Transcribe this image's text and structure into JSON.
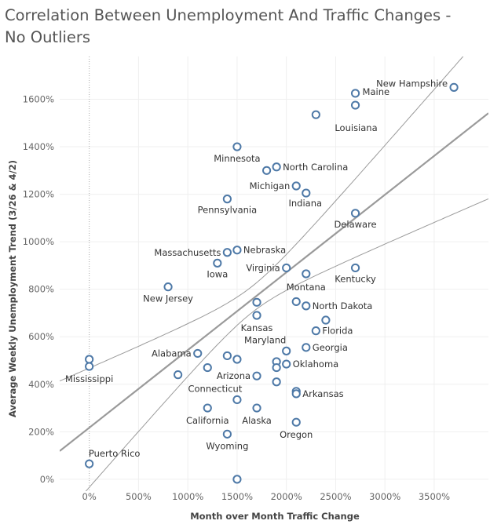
{
  "chart_data": {
    "type": "scatter",
    "title": "Correlation Between Unemployment And Traffic Changes - No Outliers",
    "xlabel": "Month over Month Traffic Change",
    "ylabel": "Average Weekly Unemployment Trend (3/26 & 4/2)",
    "xlim": [
      -300,
      4050
    ],
    "ylim": [
      -50,
      1780
    ],
    "xticks": [
      0,
      500,
      1000,
      1500,
      2000,
      2500,
      3000,
      3500
    ],
    "xtick_labels": [
      "0%",
      "500%",
      "1000%",
      "1500%",
      "2000%",
      "2500%",
      "3000%",
      "3500%"
    ],
    "yticks": [
      0,
      200,
      400,
      600,
      800,
      1000,
      1200,
      1400,
      1600
    ],
    "ytick_labels": [
      "0%",
      "200%",
      "400%",
      "600%",
      "800%",
      "1000%",
      "1200%",
      "1400%",
      "1600%"
    ],
    "reference_line_x": 0,
    "trend_line": {
      "intercept": 217,
      "slope": 0.327
    },
    "confidence_band": {
      "upper_at_zero": 460,
      "lower_at_zero": -30
    },
    "points": [
      {
        "name": "New Hampshire",
        "x": 3700,
        "y": 1650
      },
      {
        "name": "Maine",
        "x": 2700,
        "y": 1625
      },
      {
        "name": "",
        "x": 2700,
        "y": 1575
      },
      {
        "name": "Louisiana",
        "x": 2300,
        "y": 1535
      },
      {
        "name": "Minnesota",
        "x": 1500,
        "y": 1400
      },
      {
        "name": "North Carolina",
        "x": 1900,
        "y": 1315
      },
      {
        "name": "",
        "x": 1800,
        "y": 1300
      },
      {
        "name": "Michigan",
        "x": 2100,
        "y": 1235
      },
      {
        "name": "Indiana",
        "x": 2200,
        "y": 1205
      },
      {
        "name": "Pennsylvania",
        "x": 1400,
        "y": 1180
      },
      {
        "name": "Delaware",
        "x": 2700,
        "y": 1120
      },
      {
        "name": "Nebraska",
        "x": 1500,
        "y": 965
      },
      {
        "name": "Massachusetts",
        "x": 1400,
        "y": 955
      },
      {
        "name": "Iowa",
        "x": 1300,
        "y": 910
      },
      {
        "name": "Virginia",
        "x": 2000,
        "y": 890
      },
      {
        "name": "Kentucky",
        "x": 2700,
        "y": 890
      },
      {
        "name": "Montana",
        "x": 2200,
        "y": 865
      },
      {
        "name": "New Jersey",
        "x": 800,
        "y": 810
      },
      {
        "name": "",
        "x": 1700,
        "y": 745
      },
      {
        "name": "",
        "x": 2100,
        "y": 748
      },
      {
        "name": "North Dakota",
        "x": 2200,
        "y": 730
      },
      {
        "name": "Kansas",
        "x": 1700,
        "y": 690
      },
      {
        "name": "",
        "x": 2400,
        "y": 670
      },
      {
        "name": "Florida",
        "x": 2300,
        "y": 625
      },
      {
        "name": "Georgia",
        "x": 2200,
        "y": 555
      },
      {
        "name": "Maryland",
        "x": 2000,
        "y": 540
      },
      {
        "name": "Alabama",
        "x": 1100,
        "y": 530
      },
      {
        "name": "",
        "x": 1400,
        "y": 520
      },
      {
        "name": "",
        "x": 1500,
        "y": 505
      },
      {
        "name": "Mississippi",
        "x": 0,
        "y": 505
      },
      {
        "name": "",
        "x": 0,
        "y": 475
      },
      {
        "name": "",
        "x": 1900,
        "y": 495
      },
      {
        "name": "Oklahoma",
        "x": 2000,
        "y": 485
      },
      {
        "name": "",
        "x": 1900,
        "y": 470
      },
      {
        "name": "",
        "x": 1200,
        "y": 470
      },
      {
        "name": "",
        "x": 900,
        "y": 440
      },
      {
        "name": "Arizona",
        "x": 1700,
        "y": 435
      },
      {
        "name": "",
        "x": 1900,
        "y": 410
      },
      {
        "name": "Arkansas",
        "x": 2100,
        "y": 370
      },
      {
        "name": "",
        "x": 2100,
        "y": 360
      },
      {
        "name": "Connecticut",
        "x": 1500,
        "y": 335
      },
      {
        "name": "Alaska",
        "x": 1700,
        "y": 300
      },
      {
        "name": "California",
        "x": 1200,
        "y": 300
      },
      {
        "name": "Oregon",
        "x": 2100,
        "y": 240
      },
      {
        "name": "Wyoming",
        "x": 1400,
        "y": 190
      },
      {
        "name": "Puerto Rico",
        "x": 0,
        "y": 65
      },
      {
        "name": "",
        "x": 1500,
        "y": 0
      }
    ]
  }
}
